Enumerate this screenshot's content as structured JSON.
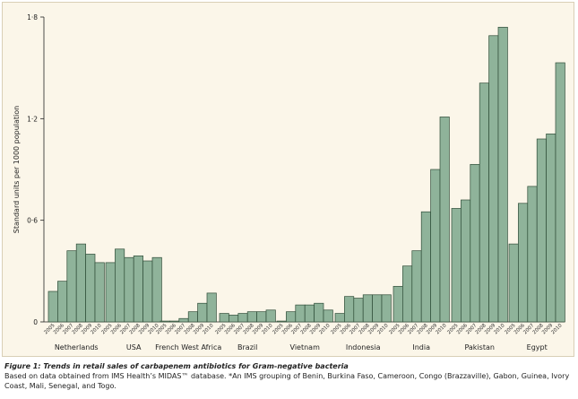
{
  "chart_data": {
    "type": "bar",
    "title": "",
    "xlabel": "",
    "ylabel": "Standard units per 1000 population",
    "ylim": [
      0,
      1.8
    ],
    "yticks": [
      "0",
      "0·6",
      "1·2",
      "1·8"
    ],
    "ytick_values": [
      0,
      0.6,
      1.2,
      1.8
    ],
    "years": [
      "2005",
      "2006",
      "2007",
      "2008",
      "2009",
      "2010"
    ],
    "bar_color": "#8fb39a",
    "bar_edge": "#2f4d38",
    "groups": [
      {
        "name": "Netherlands",
        "values": [
          0.18,
          0.24,
          0.42,
          0.46,
          0.4,
          0.35
        ]
      },
      {
        "name": "USA",
        "values": [
          0.35,
          0.43,
          0.38,
          0.39,
          0.36,
          0.38
        ]
      },
      {
        "name": "French West Africa",
        "values": [
          0.005,
          0.005,
          0.02,
          0.06,
          0.11,
          0.17
        ]
      },
      {
        "name": "Brazil",
        "values": [
          0.05,
          0.04,
          0.05,
          0.06,
          0.06,
          0.07
        ]
      },
      {
        "name": "Vietnam",
        "values": [
          0.005,
          0.06,
          0.1,
          0.1,
          0.11,
          0.07
        ]
      },
      {
        "name": "Indonesia",
        "values": [
          0.05,
          0.15,
          0.14,
          0.16,
          0.16,
          0.16
        ]
      },
      {
        "name": "India",
        "values": [
          0.21,
          0.33,
          0.42,
          0.65,
          0.9,
          1.21
        ]
      },
      {
        "name": "Pakistan",
        "values": [
          0.67,
          0.72,
          0.93,
          1.41,
          1.69,
          1.74
        ]
      },
      {
        "name": "Egypt",
        "values": [
          0.46,
          0.7,
          0.8,
          1.08,
          1.11,
          1.53
        ]
      }
    ]
  },
  "caption": {
    "title": "Figure 1: Trends in retail sales of carbapenem antibiotics for Gram-negative bacteria",
    "body": "Based on data obtained from IMS Health’s MIDAS™ database. *An IMS grouping of Benin, Burkina Faso, Cameroon, Congo (Brazzaville), Gabon, Guinea, Ivory Coast, Mali, Senegal, and Togo."
  }
}
